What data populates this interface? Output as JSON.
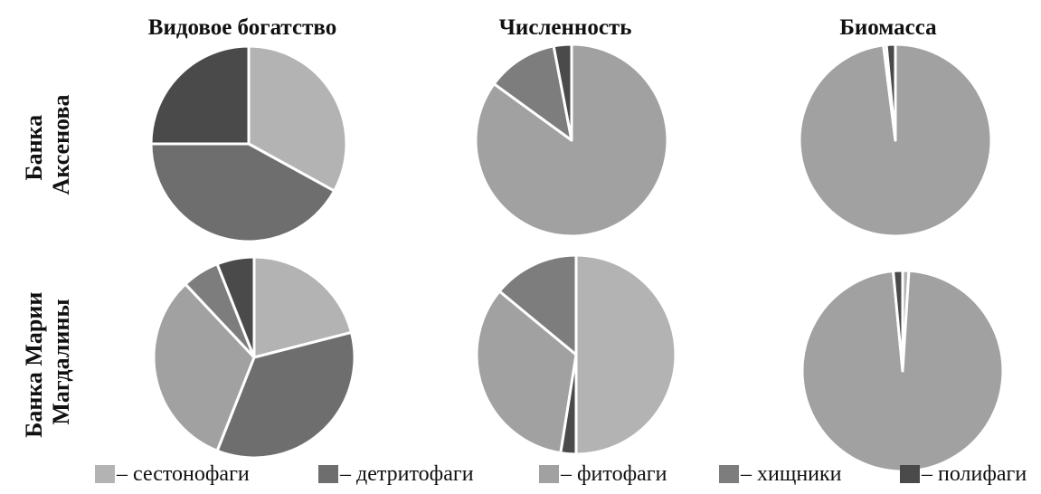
{
  "chart_data": {
    "type": "pie",
    "column_titles": [
      "Видовое богатство",
      "Численность",
      "Биомасса"
    ],
    "row_titles": [
      [
        "Банка",
        "Аксенова"
      ],
      [
        "Банка Марии",
        "Магдалины"
      ]
    ],
    "legend": [
      {
        "label": "– сестонофаги",
        "color": "#b3b3b3"
      },
      {
        "label": "– детритофаги",
        "color": "#6e6e6e"
      },
      {
        "label": "– фитофаги",
        "color": "#a1a1a1"
      },
      {
        "label": "– хищники",
        "color": "#7d7d7d"
      },
      {
        "label": "– полифаги",
        "color": "#4a4a4a"
      }
    ],
    "pies": [
      {
        "row": "Банка Аксенова",
        "column": "Видовое богатство",
        "slices": [
          {
            "group": "сестонофаги",
            "value": 33
          },
          {
            "group": "детритофаги",
            "value": 42
          },
          {
            "group": "полифаги",
            "value": 25
          }
        ]
      },
      {
        "row": "Банка Аксенова",
        "column": "Численность",
        "slices": [
          {
            "group": "фитофаги",
            "value": 85
          },
          {
            "group": "хищники",
            "value": 12
          },
          {
            "group": "полифаги",
            "value": 3
          }
        ]
      },
      {
        "row": "Банка Аксенова",
        "column": "Биомасса",
        "slices": [
          {
            "group": "фитофаги",
            "value": 98
          },
          {
            "group": "хищники",
            "value": 0.5
          },
          {
            "group": "полифаги",
            "value": 1.5
          }
        ]
      },
      {
        "row": "Банка Марии Магдалины",
        "column": "Видовое богатство",
        "slices": [
          {
            "group": "сестонофаги",
            "value": 21
          },
          {
            "group": "детритофаги",
            "value": 35
          },
          {
            "group": "фитофаги",
            "value": 32
          },
          {
            "group": "хищники",
            "value": 6
          },
          {
            "group": "полифаги",
            "value": 6
          }
        ]
      },
      {
        "row": "Банка Марии Магдалины",
        "column": "Численность",
        "slices": [
          {
            "group": "сестонофаги",
            "value": 50
          },
          {
            "group": "полифаги",
            "value": 2.5
          },
          {
            "group": "фитофаги",
            "value": 33.5
          },
          {
            "group": "хищники",
            "value": 14
          }
        ]
      },
      {
        "row": "Банка Марии Магдалины",
        "column": "Биомасса",
        "slices": [
          {
            "group": "сестонофаги",
            "value": 1
          },
          {
            "group": "фитофаги",
            "value": 97.5
          },
          {
            "group": "полифаги",
            "value": 1.5
          }
        ]
      }
    ]
  }
}
